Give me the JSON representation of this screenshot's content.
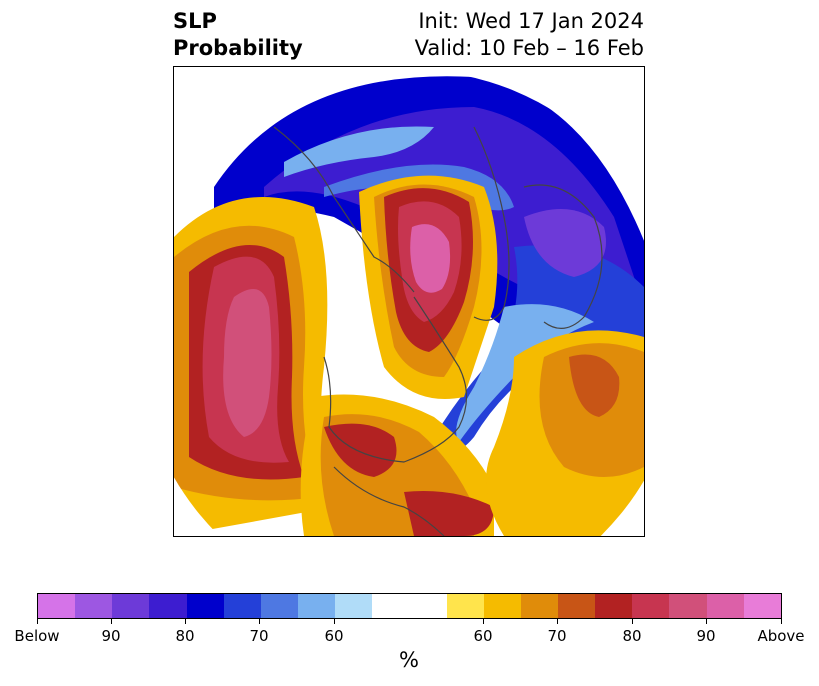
{
  "title": {
    "left_line1": "SLP",
    "left_line2": "Probability",
    "right_line1": "Init: Wed 17 Jan 2024",
    "right_line2": "Valid: 10 Feb – 16 Feb"
  },
  "colorbar": {
    "colors": [
      "#d573e8",
      "#9d57e2",
      "#6d3ad8",
      "#3d1dd0",
      "#0000cc",
      "#2440d8",
      "#4e78e2",
      "#78b0ef",
      "#b0dcf8",
      "#ffffff",
      "#ffffff",
      "#ffe44c",
      "#f5bb00",
      "#e08c0a",
      "#c85516",
      "#b22222",
      "#c73550",
      "#d1507a",
      "#dc60a8",
      "#e87cd8"
    ],
    "tick_labels": [
      "Below",
      "90",
      "80",
      "70",
      "60",
      "60",
      "70",
      "80",
      "90",
      "Above"
    ],
    "unit": "%"
  },
  "map": {
    "projection": "north polar stereographic",
    "legend_meaning": "below/above normal sea level pressure probability"
  }
}
